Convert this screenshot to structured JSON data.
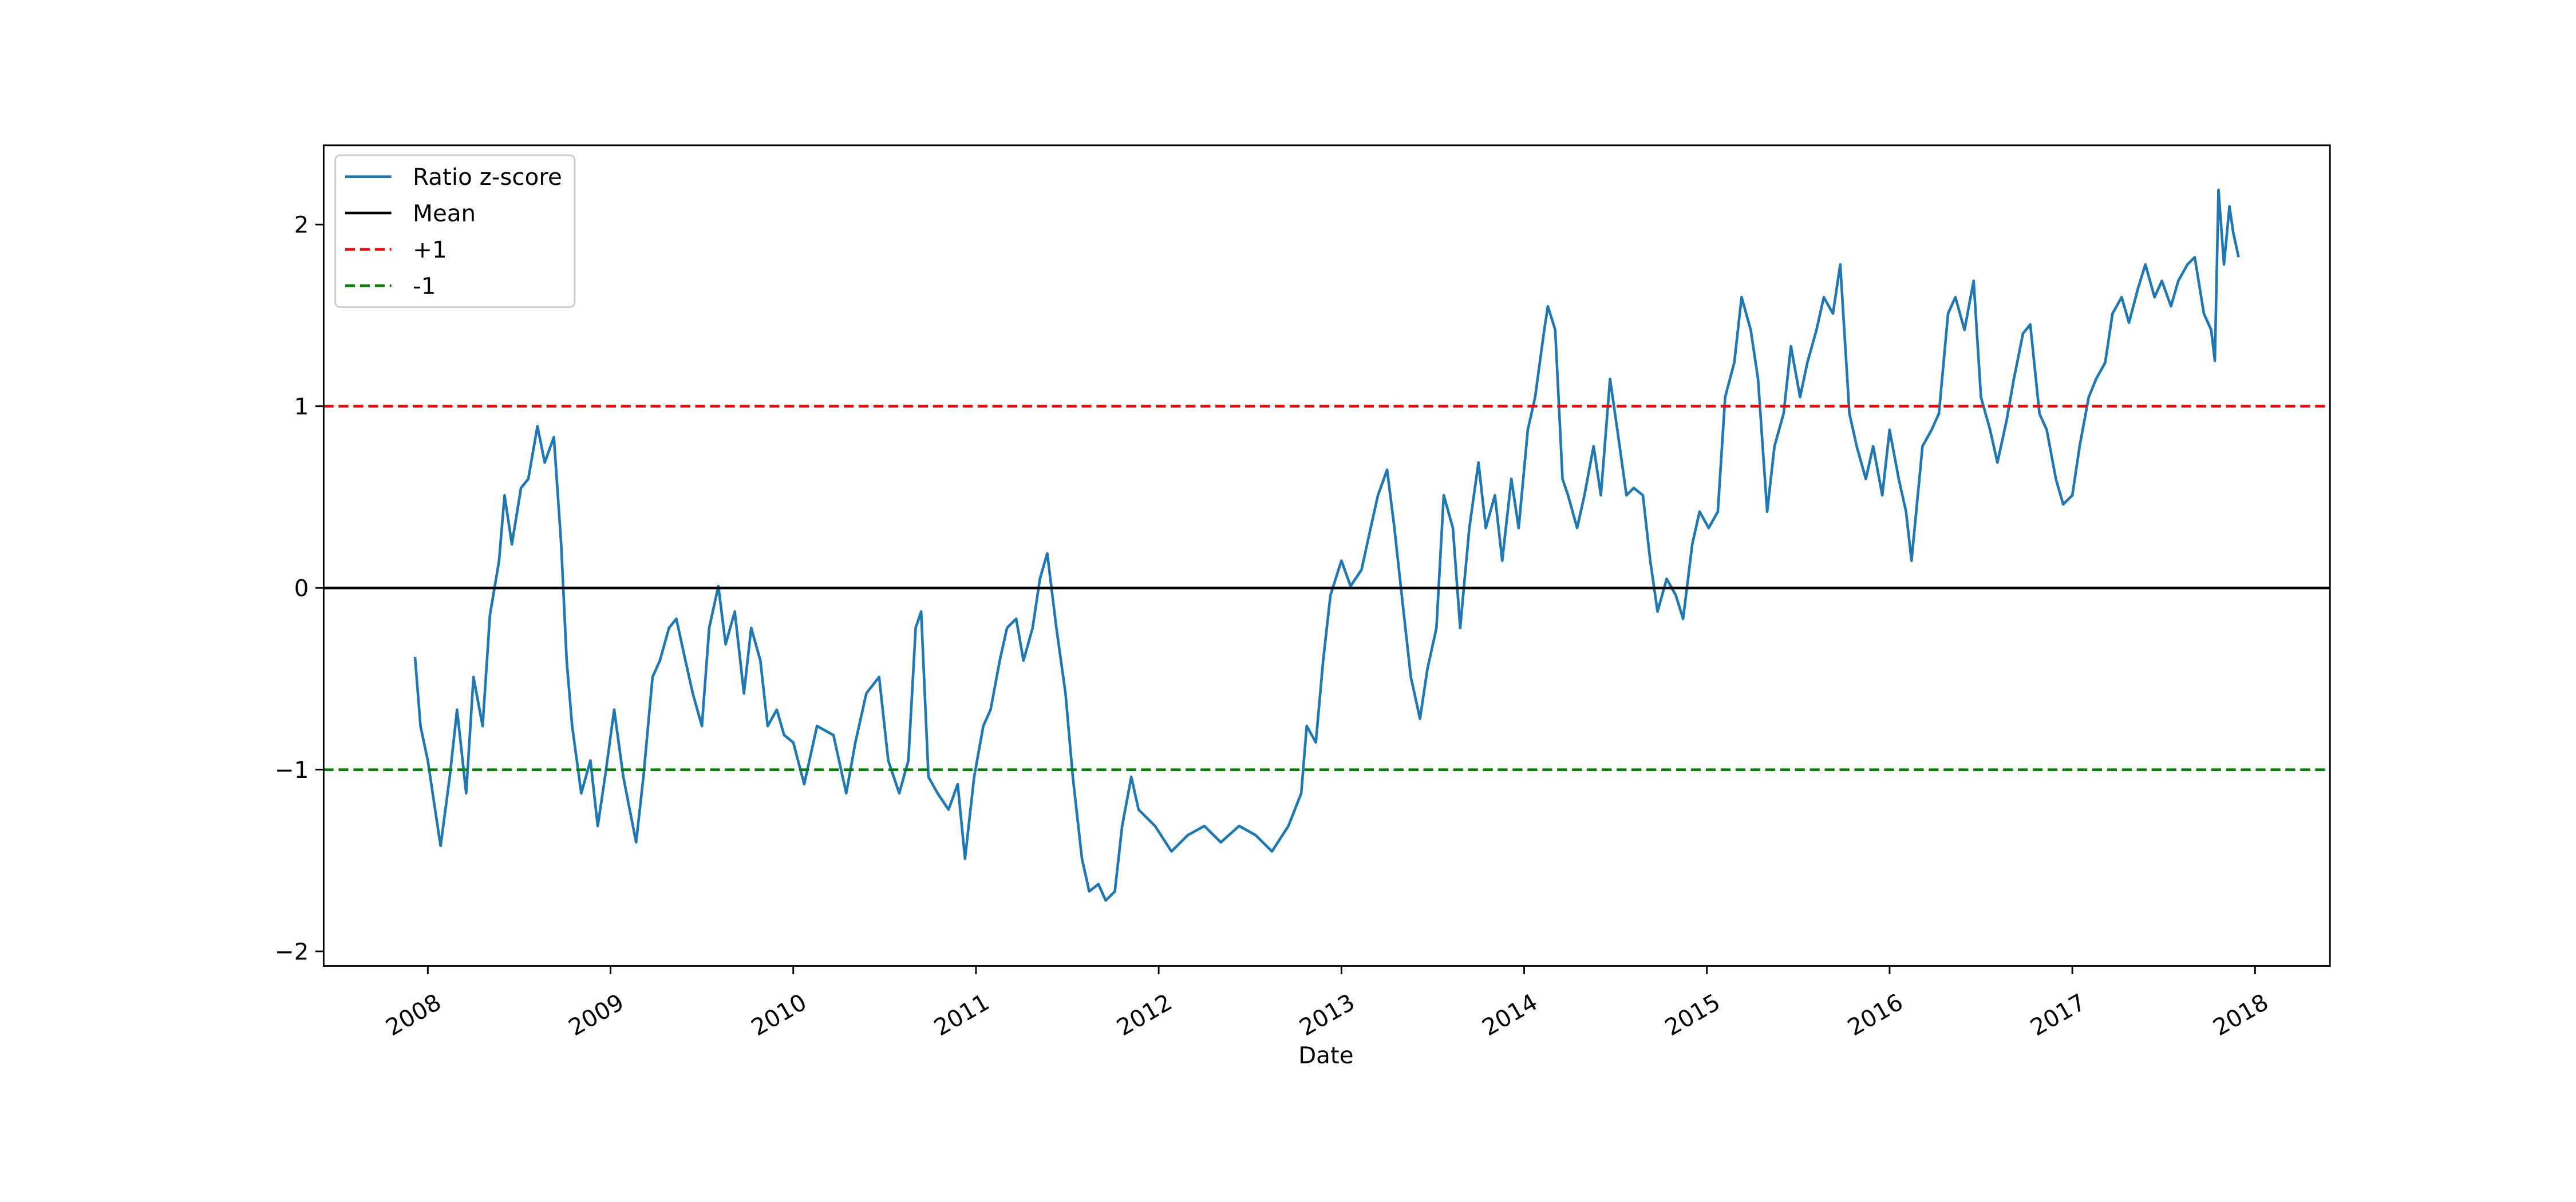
{
  "chart_data": {
    "type": "line",
    "xlabel": "Date",
    "x": [
      2007.93,
      2007.96,
      2008.0,
      2008.04,
      2008.07,
      2008.12,
      2008.16,
      2008.21,
      2008.25,
      2008.3,
      2008.34,
      2008.39,
      2008.42,
      2008.46,
      2008.51,
      2008.55,
      2008.6,
      2008.64,
      2008.69,
      2008.73,
      2008.76,
      2008.79,
      2008.84,
      2008.89,
      2008.93,
      2008.97,
      2009.02,
      2009.07,
      2009.14,
      2009.18,
      2009.23,
      2009.27,
      2009.32,
      2009.36,
      2009.41,
      2009.45,
      2009.5,
      2009.54,
      2009.59,
      2009.63,
      2009.68,
      2009.73,
      2009.77,
      2009.82,
      2009.86,
      2009.91,
      2009.95,
      2010.0,
      2010.06,
      2010.13,
      2010.22,
      2010.29,
      2010.34,
      2010.4,
      2010.47,
      2010.52,
      2010.58,
      2010.63,
      2010.67,
      2010.7,
      2010.74,
      2010.79,
      2010.85,
      2010.9,
      2010.94,
      2010.99,
      2011.04,
      2011.08,
      2011.13,
      2011.17,
      2011.22,
      2011.26,
      2011.31,
      2011.35,
      2011.39,
      2011.44,
      2011.49,
      2011.53,
      2011.58,
      2011.62,
      2011.67,
      2011.71,
      2011.76,
      2011.8,
      2011.85,
      2011.89,
      2011.98,
      2012.07,
      2012.16,
      2012.25,
      2012.34,
      2012.44,
      2012.53,
      2012.62,
      2012.71,
      2012.78,
      2012.81,
      2012.86,
      2012.9,
      2012.94,
      2013.0,
      2013.05,
      2013.11,
      2013.16,
      2013.2,
      2013.25,
      2013.29,
      2013.34,
      2013.38,
      2013.43,
      2013.47,
      2013.52,
      2013.56,
      2013.61,
      2013.65,
      2013.7,
      2013.75,
      2013.79,
      2013.84,
      2013.88,
      2013.93,
      2013.97,
      2014.02,
      2014.06,
      2014.11,
      2014.13,
      2014.17,
      2014.21,
      2014.24,
      2014.29,
      2014.33,
      2014.38,
      2014.42,
      2014.47,
      2014.51,
      2014.56,
      2014.6,
      2014.65,
      2014.69,
      2014.73,
      2014.78,
      2014.83,
      2014.87,
      2014.92,
      2014.96,
      2015.01,
      2015.06,
      2015.1,
      2015.15,
      2015.19,
      2015.24,
      2015.28,
      2015.33,
      2015.37,
      2015.42,
      2015.46,
      2015.51,
      2015.55,
      2015.6,
      2015.64,
      2015.69,
      2015.73,
      2015.78,
      2015.82,
      2015.87,
      2015.91,
      2015.96,
      2016.0,
      2016.05,
      2016.09,
      2016.12,
      2016.18,
      2016.23,
      2016.27,
      2016.32,
      2016.36,
      2016.41,
      2016.46,
      2016.5,
      2016.55,
      2016.59,
      2016.64,
      2016.68,
      2016.73,
      2016.77,
      2016.82,
      2016.86,
      2016.91,
      2016.95,
      2017.0,
      2017.04,
      2017.09,
      2017.13,
      2017.18,
      2017.22,
      2017.27,
      2017.31,
      2017.36,
      2017.4,
      2017.45,
      2017.49,
      2017.54,
      2017.58,
      2017.63,
      2017.67,
      2017.72,
      2017.76,
      2017.78,
      2017.8,
      2017.83,
      2017.86,
      2017.88,
      2017.91
    ],
    "series": [
      {
        "name": "Ratio z-score",
        "color": "#1f77b4",
        "values": [
          -0.38,
          -0.76,
          -0.95,
          -1.22,
          -1.42,
          -1.04,
          -0.67,
          -1.13,
          -0.49,
          -0.76,
          -0.15,
          0.15,
          0.51,
          0.24,
          0.55,
          0.6,
          0.89,
          0.69,
          0.83,
          0.24,
          -0.4,
          -0.76,
          -1.13,
          -0.95,
          -1.31,
          -1.04,
          -0.67,
          -1.04,
          -1.4,
          -1.04,
          -0.49,
          -0.4,
          -0.22,
          -0.17,
          -0.4,
          -0.58,
          -0.76,
          -0.22,
          0.01,
          -0.31,
          -0.13,
          -0.58,
          -0.22,
          -0.4,
          -0.76,
          -0.67,
          -0.81,
          -0.85,
          -1.08,
          -0.76,
          -0.81,
          -1.13,
          -0.85,
          -0.58,
          -0.49,
          -0.95,
          -1.13,
          -0.95,
          -0.22,
          -0.13,
          -1.04,
          -1.13,
          -1.22,
          -1.08,
          -1.49,
          -1.04,
          -0.76,
          -0.67,
          -0.4,
          -0.22,
          -0.17,
          -0.4,
          -0.22,
          0.05,
          0.19,
          -0.22,
          -0.58,
          -1.04,
          -1.49,
          -1.67,
          -1.63,
          -1.72,
          -1.67,
          -1.31,
          -1.04,
          -1.22,
          -1.31,
          -1.45,
          -1.36,
          -1.31,
          -1.4,
          -1.31,
          -1.36,
          -1.45,
          -1.31,
          -1.13,
          -0.76,
          -0.85,
          -0.4,
          -0.04,
          0.15,
          0.01,
          0.1,
          0.33,
          0.51,
          0.65,
          0.33,
          -0.13,
          -0.49,
          -0.72,
          -0.45,
          -0.22,
          0.51,
          0.33,
          -0.22,
          0.33,
          0.69,
          0.33,
          0.51,
          0.15,
          0.6,
          0.33,
          0.87,
          1.05,
          1.42,
          1.55,
          1.42,
          0.6,
          0.51,
          0.33,
          0.51,
          0.78,
          0.51,
          1.15,
          0.87,
          0.51,
          0.55,
          0.51,
          0.15,
          -0.13,
          0.05,
          -0.04,
          -0.17,
          0.24,
          0.42,
          0.33,
          0.42,
          1.05,
          1.24,
          1.6,
          1.42,
          1.15,
          0.42,
          0.78,
          0.96,
          1.33,
          1.05,
          1.24,
          1.42,
          1.6,
          1.51,
          1.78,
          0.96,
          0.78,
          0.6,
          0.78,
          0.51,
          0.87,
          0.6,
          0.42,
          0.15,
          0.78,
          0.87,
          0.96,
          1.51,
          1.6,
          1.42,
          1.69,
          1.05,
          0.87,
          0.69,
          0.92,
          1.15,
          1.4,
          1.45,
          0.96,
          0.87,
          0.6,
          0.46,
          0.51,
          0.78,
          1.05,
          1.15,
          1.24,
          1.51,
          1.6,
          1.46,
          1.65,
          1.78,
          1.6,
          1.69,
          1.55,
          1.69,
          1.78,
          1.82,
          1.51,
          1.42,
          1.25,
          2.19,
          1.78,
          2.1,
          1.96,
          1.82
        ]
      }
    ],
    "hlines": [
      {
        "name": "Mean",
        "value": 0,
        "color": "#000000",
        "dashed": false
      },
      {
        "name": "+1",
        "value": 1,
        "color": "#ff0000",
        "dashed": true
      },
      {
        "name": "-1",
        "value": -1,
        "color": "#008000",
        "dashed": true
      }
    ],
    "xlim": [
      2007.43,
      2018.41
    ],
    "xticks": [
      2008,
      2009,
      2010,
      2011,
      2012,
      2013,
      2014,
      2015,
      2016,
      2017,
      2018
    ],
    "ylim": [
      -2.08,
      2.436
    ],
    "yticks": [
      {
        "value": -2,
        "label": "−2"
      },
      {
        "value": -1,
        "label": "−1"
      },
      0,
      1,
      2
    ],
    "legend": "upper left"
  }
}
